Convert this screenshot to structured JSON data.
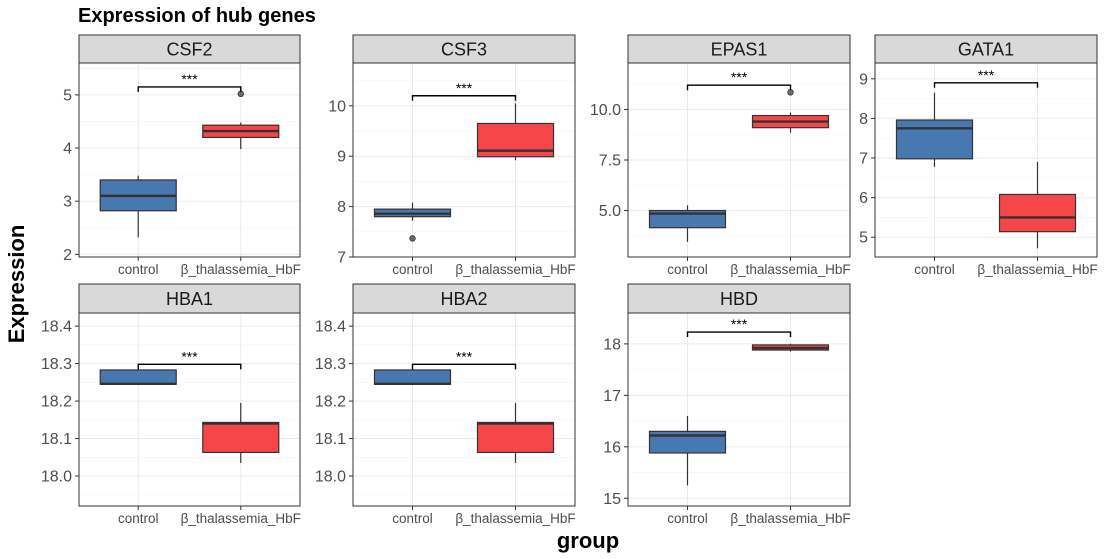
{
  "chart_data": {
    "type": "boxplot",
    "title": "Expression of hub genes",
    "xlabel": "group",
    "ylabel": "Expression",
    "categories": [
      "control",
      "β_thalassemia_HbF"
    ],
    "colors": {
      "control": "#4878b0",
      "β_thalassemia_HbF": "#f7464a"
    },
    "panels": [
      {
        "name": "CSF2",
        "ylim": [
          1.95,
          5.6
        ],
        "yticks": [
          2,
          3,
          4,
          5
        ],
        "significance": "***",
        "bracket_y": 5.15,
        "groups": [
          {
            "group": "control",
            "min": 2.32,
            "q1": 2.82,
            "median": 3.1,
            "q3": 3.4,
            "max": 3.48,
            "outliers": []
          },
          {
            "group": "β_thalassemia_HbF",
            "min": 3.98,
            "q1": 4.2,
            "median": 4.32,
            "q3": 4.43,
            "max": 4.48,
            "outliers": [
              5.02
            ]
          }
        ]
      },
      {
        "name": "CSF3",
        "ylim": [
          7.0,
          10.85
        ],
        "yticks": [
          7,
          8,
          9,
          10
        ],
        "significance": "***",
        "bracket_y": 10.2,
        "groups": [
          {
            "group": "control",
            "min": 7.72,
            "q1": 7.8,
            "median": 7.86,
            "q3": 7.95,
            "max": 8.08,
            "outliers": [
              7.37
            ]
          },
          {
            "group": "β_thalassemia_HbF",
            "min": 8.92,
            "q1": 8.99,
            "median": 9.11,
            "q3": 9.65,
            "max": 10.05,
            "outliers": []
          }
        ]
      },
      {
        "name": "EPAS1",
        "ylim": [
          2.7,
          12.3
        ],
        "yticks": [
          5.0,
          7.5,
          10.0
        ],
        "yticklabels": [
          "5.0",
          "7.5",
          "10.0"
        ],
        "significance": "***",
        "bracket_y": 11.2,
        "groups": [
          {
            "group": "control",
            "min": 3.45,
            "q1": 4.15,
            "median": 4.85,
            "q3": 5.0,
            "max": 5.25,
            "outliers": []
          },
          {
            "group": "β_thalassemia_HbF",
            "min": 8.85,
            "q1": 9.1,
            "median": 9.4,
            "q3": 9.7,
            "max": 9.85,
            "outliers": [
              10.85
            ]
          }
        ]
      },
      {
        "name": "GATA1",
        "ylim": [
          4.5,
          9.4
        ],
        "yticks": [
          5,
          6,
          7,
          8,
          9
        ],
        "significance": "***",
        "bracket_y": 8.9,
        "groups": [
          {
            "group": "control",
            "min": 6.78,
            "q1": 6.98,
            "median": 7.75,
            "q3": 7.96,
            "max": 8.65,
            "outliers": []
          },
          {
            "group": "β_thalassemia_HbF",
            "min": 4.72,
            "q1": 5.14,
            "median": 5.5,
            "q3": 6.08,
            "max": 6.9,
            "outliers": []
          }
        ]
      },
      {
        "name": "HBA1",
        "ylim": [
          17.92,
          18.435
        ],
        "yticks": [
          18.0,
          18.1,
          18.2,
          18.3,
          18.4
        ],
        "yticklabels": [
          "18.0",
          "18.1",
          "18.2",
          "18.3",
          "18.4"
        ],
        "significance": "***",
        "bracket_y": 18.298,
        "groups": [
          {
            "group": "control",
            "min": 18.243,
            "q1": 18.245,
            "median": 18.246,
            "q3": 18.283,
            "max": 18.283,
            "outliers": []
          },
          {
            "group": "β_thalassemia_HbF",
            "min": 18.035,
            "q1": 18.063,
            "median": 18.14,
            "q3": 18.143,
            "max": 18.195,
            "outliers": []
          }
        ]
      },
      {
        "name": "HBA2",
        "ylim": [
          17.92,
          18.435
        ],
        "yticks": [
          18.0,
          18.1,
          18.2,
          18.3,
          18.4
        ],
        "yticklabels": [
          "18.0",
          "18.1",
          "18.2",
          "18.3",
          "18.4"
        ],
        "significance": "***",
        "bracket_y": 18.298,
        "groups": [
          {
            "group": "control",
            "min": 18.243,
            "q1": 18.245,
            "median": 18.246,
            "q3": 18.283,
            "max": 18.283,
            "outliers": []
          },
          {
            "group": "β_thalassemia_HbF",
            "min": 18.035,
            "q1": 18.063,
            "median": 18.14,
            "q3": 18.143,
            "max": 18.195,
            "outliers": []
          }
        ]
      },
      {
        "name": "HBD",
        "ylim": [
          14.85,
          18.6
        ],
        "yticks": [
          15,
          16,
          17,
          18
        ],
        "significance": "***",
        "bracket_y": 18.23,
        "groups": [
          {
            "group": "control",
            "min": 15.25,
            "q1": 15.88,
            "median": 16.22,
            "q3": 16.3,
            "max": 16.6,
            "outliers": []
          },
          {
            "group": "β_thalassemia_HbF",
            "min": 17.85,
            "q1": 17.88,
            "median": 17.92,
            "q3": 17.98,
            "max": 18.0,
            "outliers": []
          }
        ]
      }
    ]
  }
}
